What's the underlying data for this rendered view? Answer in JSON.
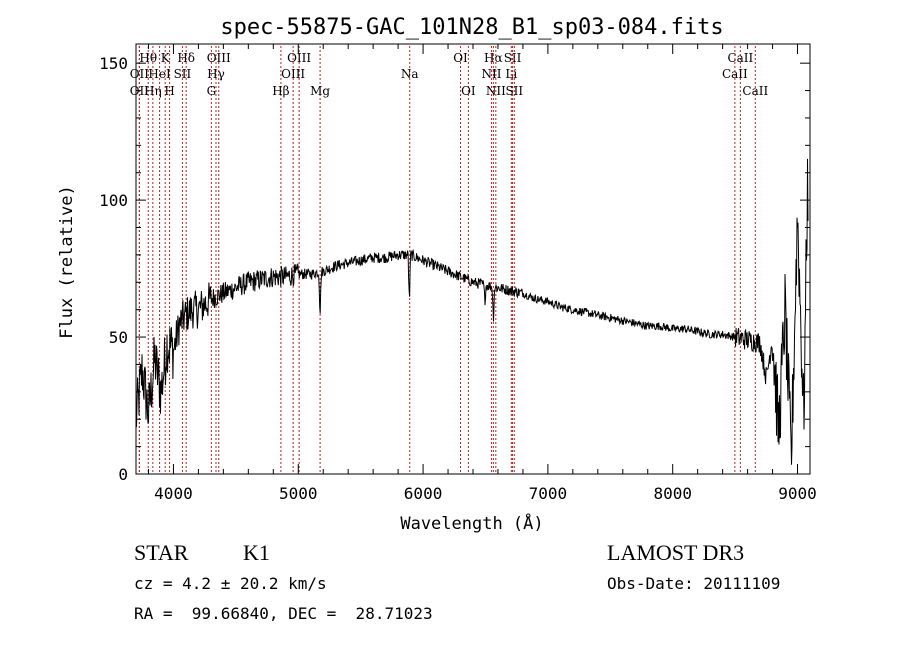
{
  "chart_data": {
    "type": "line",
    "title": "spec-55875-GAC_101N28_B1_sp03-084.fits",
    "xlabel": "Wavelength (Å)",
    "ylabel": "Flux (relative)",
    "xlim": [
      3700,
      9100
    ],
    "ylim": [
      0,
      157
    ],
    "x_ticks": [
      4000,
      5000,
      6000,
      7000,
      8000,
      9000
    ],
    "x_tick_labels": [
      "4000",
      "5000",
      "6000",
      "7000",
      "8000",
      "9000"
    ],
    "y_ticks": [
      0,
      50,
      100,
      150
    ],
    "y_tick_labels": [
      "0",
      "50",
      "100",
      "150"
    ],
    "grid": false,
    "line_color": "#000000",
    "marker_color": "#b22222",
    "series": [
      {
        "name": "flux",
        "x": [
          3700,
          3750,
          3800,
          3850,
          3900,
          3950,
          4000,
          4050,
          4100,
          4150,
          4200,
          4250,
          4300,
          4400,
          4500,
          4600,
          4700,
          4800,
          4900,
          5000,
          5100,
          5200,
          5300,
          5400,
          5500,
          5600,
          5700,
          5800,
          5900,
          6000,
          6100,
          6200,
          6300,
          6400,
          6500,
          6600,
          6700,
          6800,
          6900,
          7000,
          7100,
          7200,
          7300,
          7400,
          7500,
          7600,
          7700,
          7800,
          7900,
          8000,
          8100,
          8200,
          8300,
          8400,
          8500,
          8600,
          8700,
          8750,
          8800,
          8850,
          8900,
          8950,
          9000,
          9050,
          9080
        ],
        "y": [
          20,
          38,
          22,
          42,
          30,
          48,
          45,
          55,
          58,
          60,
          60,
          62,
          64,
          66,
          68,
          70,
          71,
          72,
          72,
          73,
          73,
          74,
          76,
          77,
          78,
          79,
          79,
          80,
          80,
          78,
          76,
          74,
          72,
          70,
          69,
          68,
          67,
          66,
          64,
          63,
          61,
          60,
          59,
          58,
          57,
          56,
          55,
          54,
          54,
          53,
          53,
          52,
          51,
          51,
          50,
          49,
          48,
          35,
          50,
          15,
          60,
          5,
          95,
          20,
          105
        ]
      }
    ],
    "absorption_dips": [
      {
        "x": 5890,
        "depth": 18
      },
      {
        "x": 5175,
        "depth": 16
      },
      {
        "x": 6563,
        "depth": 12
      },
      {
        "x": 6495,
        "depth": 6
      }
    ],
    "line_markers": [
      {
        "name": "Hθ",
        "wavelength": 3798,
        "row": 1
      },
      {
        "name": "OII",
        "wavelength": 3727,
        "row": 2
      },
      {
        "name": "OII",
        "wavelength": 3727,
        "row": 3
      },
      {
        "name": "K",
        "wavelength": 3934,
        "row": 1
      },
      {
        "name": "Hη",
        "wavelength": 3835,
        "row": 3
      },
      {
        "name": "HeI",
        "wavelength": 3889,
        "row": 2
      },
      {
        "name": "H",
        "wavelength": 3969,
        "row": 3
      },
      {
        "name": "Hδ",
        "wavelength": 4102,
        "row": 1
      },
      {
        "name": "SII",
        "wavelength": 4072,
        "row": 2
      },
      {
        "name": "OIII",
        "wavelength": 4363,
        "row": 1
      },
      {
        "name": "Hγ",
        "wavelength": 4341,
        "row": 2
      },
      {
        "name": "G",
        "wavelength": 4304,
        "row": 3
      },
      {
        "name": "Hβ",
        "wavelength": 4861,
        "row": 3
      },
      {
        "name": "OIII",
        "wavelength": 5007,
        "row": 1
      },
      {
        "name": "OIII",
        "wavelength": 4959,
        "row": 2
      },
      {
        "name": "Mg",
        "wavelength": 5175,
        "row": 3
      },
      {
        "name": "Na",
        "wavelength": 5893,
        "row": 2
      },
      {
        "name": "OI",
        "wavelength": 6300,
        "row": 1
      },
      {
        "name": "OI",
        "wavelength": 6363,
        "row": 3
      },
      {
        "name": "Hα",
        "wavelength": 6563,
        "row": 1
      },
      {
        "name": "NII",
        "wavelength": 6548,
        "row": 2
      },
      {
        "name": "NII",
        "wavelength": 6583,
        "row": 3
      },
      {
        "name": "SII",
        "wavelength": 6717,
        "row": 1
      },
      {
        "name": "Li",
        "wavelength": 6707,
        "row": 2
      },
      {
        "name": "SII",
        "wavelength": 6731,
        "row": 3
      },
      {
        "name": "CaII",
        "wavelength": 8542,
        "row": 1
      },
      {
        "name": "CaII",
        "wavelength": 8498,
        "row": 2
      },
      {
        "name": "CaII",
        "wavelength": 8662,
        "row": 3
      }
    ]
  },
  "info": {
    "class": "STAR",
    "subclass": "K1",
    "survey": "LAMOST DR3",
    "redshift": "cz = 4.2 ± 20.2 km/s",
    "obs_date": "Obs-Date: 20111109",
    "coords": "RA =  99.66840, DEC =  28.71023"
  }
}
